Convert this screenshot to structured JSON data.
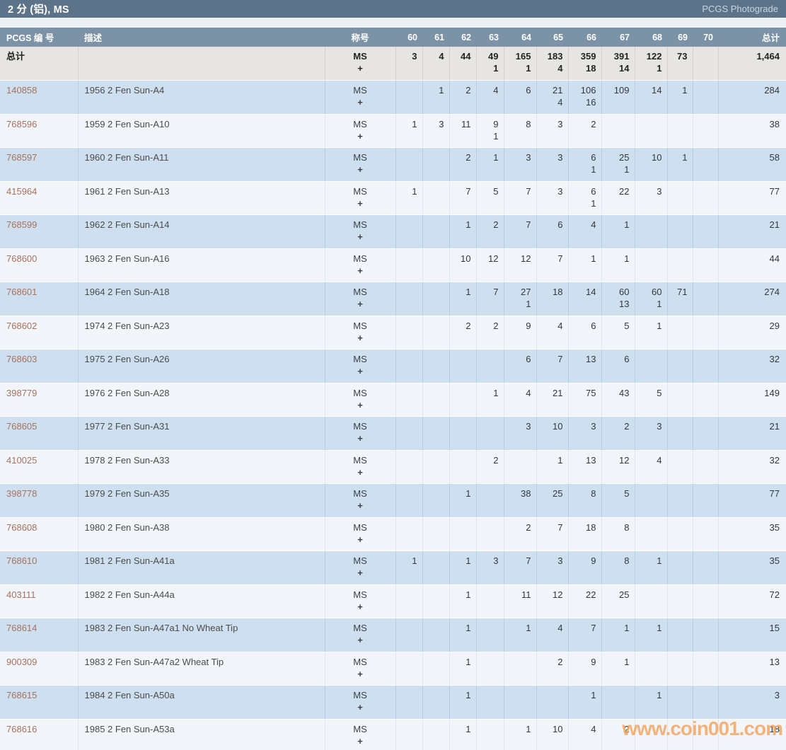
{
  "header": {
    "title": "2 分 (铝), MS",
    "right_link": "PCGS Photograde"
  },
  "watermark": "www.coin001.com",
  "colors": {
    "titlebar_bg": "#5c7389",
    "column_header_bg": "#7b92a7",
    "totals_row_bg": "#e7e5e2",
    "row_blue_bg": "#cee0ef",
    "row_light_bg": "#f2f6fa",
    "pcgs_link": "#a5725f",
    "watermark_orange": "#f3a662"
  },
  "table": {
    "columns": {
      "pcgs": "PCGS 编 号",
      "desc": "描述",
      "title": "称号",
      "grades": [
        "60",
        "61",
        "62",
        "63",
        "64",
        "65",
        "66",
        "67",
        "68",
        "69",
        "70"
      ],
      "total": "总计"
    },
    "title_lines": [
      "MS",
      "+"
    ],
    "totals_row": {
      "label": "总计",
      "grades": [
        [
          "3",
          ""
        ],
        [
          "4",
          ""
        ],
        [
          "44",
          ""
        ],
        [
          "49",
          "1"
        ],
        [
          "165",
          "1"
        ],
        [
          "183",
          "4"
        ],
        [
          "359",
          "18"
        ],
        [
          "391",
          "14"
        ],
        [
          "122",
          "1"
        ],
        [
          "73",
          ""
        ],
        [
          "",
          ""
        ]
      ],
      "total": "1,464"
    },
    "rows": [
      {
        "pcgs": "140858",
        "desc": "1956 2 Fen Sun-A4",
        "grades": [
          [
            "",
            ""
          ],
          [
            "1",
            ""
          ],
          [
            "2",
            ""
          ],
          [
            "4",
            ""
          ],
          [
            "6",
            ""
          ],
          [
            "21",
            "4"
          ],
          [
            "106",
            "16"
          ],
          [
            "109",
            ""
          ],
          [
            "14",
            ""
          ],
          [
            "1",
            ""
          ],
          [
            "",
            ""
          ]
        ],
        "total": "284"
      },
      {
        "pcgs": "768596",
        "desc": "1959 2 Fen Sun-A10",
        "grades": [
          [
            "1",
            ""
          ],
          [
            "3",
            ""
          ],
          [
            "11",
            ""
          ],
          [
            "9",
            "1"
          ],
          [
            "8",
            ""
          ],
          [
            "3",
            ""
          ],
          [
            "2",
            ""
          ],
          [
            "",
            ""
          ],
          [
            "",
            ""
          ],
          [
            "",
            ""
          ],
          [
            "",
            ""
          ]
        ],
        "total": "38"
      },
      {
        "pcgs": "768597",
        "desc": "1960 2 Fen Sun-A11",
        "grades": [
          [
            "",
            ""
          ],
          [
            "",
            ""
          ],
          [
            "2",
            ""
          ],
          [
            "1",
            ""
          ],
          [
            "3",
            ""
          ],
          [
            "3",
            ""
          ],
          [
            "6",
            "1"
          ],
          [
            "25",
            "1"
          ],
          [
            "10",
            ""
          ],
          [
            "1",
            ""
          ],
          [
            "",
            ""
          ]
        ],
        "total": "58"
      },
      {
        "pcgs": "415964",
        "desc": "1961 2 Fen Sun-A13",
        "grades": [
          [
            "1",
            ""
          ],
          [
            "",
            ""
          ],
          [
            "7",
            ""
          ],
          [
            "5",
            ""
          ],
          [
            "7",
            ""
          ],
          [
            "3",
            ""
          ],
          [
            "6",
            "1"
          ],
          [
            "22",
            ""
          ],
          [
            "3",
            ""
          ],
          [
            "",
            ""
          ],
          [
            "",
            ""
          ]
        ],
        "total": "77"
      },
      {
        "pcgs": "768599",
        "desc": "1962 2 Fen Sun-A14",
        "grades": [
          [
            "",
            ""
          ],
          [
            "",
            ""
          ],
          [
            "1",
            ""
          ],
          [
            "2",
            ""
          ],
          [
            "7",
            ""
          ],
          [
            "6",
            ""
          ],
          [
            "4",
            ""
          ],
          [
            "1",
            ""
          ],
          [
            "",
            ""
          ],
          [
            "",
            ""
          ],
          [
            "",
            ""
          ]
        ],
        "total": "21"
      },
      {
        "pcgs": "768600",
        "desc": "1963 2 Fen Sun-A16",
        "grades": [
          [
            "",
            ""
          ],
          [
            "",
            ""
          ],
          [
            "10",
            ""
          ],
          [
            "12",
            ""
          ],
          [
            "12",
            ""
          ],
          [
            "7",
            ""
          ],
          [
            "1",
            ""
          ],
          [
            "1",
            ""
          ],
          [
            "",
            ""
          ],
          [
            "",
            ""
          ],
          [
            "",
            ""
          ]
        ],
        "total": "44"
      },
      {
        "pcgs": "768601",
        "desc": "1964 2 Fen Sun-A18",
        "grades": [
          [
            "",
            ""
          ],
          [
            "",
            ""
          ],
          [
            "1",
            ""
          ],
          [
            "7",
            ""
          ],
          [
            "27",
            "1"
          ],
          [
            "18",
            ""
          ],
          [
            "14",
            ""
          ],
          [
            "60",
            "13"
          ],
          [
            "60",
            "1"
          ],
          [
            "71",
            ""
          ],
          [
            "",
            ""
          ]
        ],
        "total": "274"
      },
      {
        "pcgs": "768602",
        "desc": "1974 2 Fen Sun-A23",
        "grades": [
          [
            "",
            ""
          ],
          [
            "",
            ""
          ],
          [
            "2",
            ""
          ],
          [
            "2",
            ""
          ],
          [
            "9",
            ""
          ],
          [
            "4",
            ""
          ],
          [
            "6",
            ""
          ],
          [
            "5",
            ""
          ],
          [
            "1",
            ""
          ],
          [
            "",
            ""
          ],
          [
            "",
            ""
          ]
        ],
        "total": "29"
      },
      {
        "pcgs": "768603",
        "desc": "1975 2 Fen Sun-A26",
        "grades": [
          [
            "",
            ""
          ],
          [
            "",
            ""
          ],
          [
            "",
            ""
          ],
          [
            "",
            ""
          ],
          [
            "6",
            ""
          ],
          [
            "7",
            ""
          ],
          [
            "13",
            ""
          ],
          [
            "6",
            ""
          ],
          [
            "",
            ""
          ],
          [
            "",
            ""
          ],
          [
            "",
            ""
          ]
        ],
        "total": "32"
      },
      {
        "pcgs": "398779",
        "desc": "1976 2 Fen Sun-A28",
        "grades": [
          [
            "",
            ""
          ],
          [
            "",
            ""
          ],
          [
            "",
            ""
          ],
          [
            "1",
            ""
          ],
          [
            "4",
            ""
          ],
          [
            "21",
            ""
          ],
          [
            "75",
            ""
          ],
          [
            "43",
            ""
          ],
          [
            "5",
            ""
          ],
          [
            "",
            ""
          ],
          [
            "",
            ""
          ]
        ],
        "total": "149"
      },
      {
        "pcgs": "768605",
        "desc": "1977 2 Fen Sun-A31",
        "grades": [
          [
            "",
            ""
          ],
          [
            "",
            ""
          ],
          [
            "",
            ""
          ],
          [
            "",
            ""
          ],
          [
            "3",
            ""
          ],
          [
            "10",
            ""
          ],
          [
            "3",
            ""
          ],
          [
            "2",
            ""
          ],
          [
            "3",
            ""
          ],
          [
            "",
            ""
          ],
          [
            "",
            ""
          ]
        ],
        "total": "21"
      },
      {
        "pcgs": "410025",
        "desc": "1978 2 Fen Sun-A33",
        "grades": [
          [
            "",
            ""
          ],
          [
            "",
            ""
          ],
          [
            "",
            ""
          ],
          [
            "2",
            ""
          ],
          [
            "",
            ""
          ],
          [
            "1",
            ""
          ],
          [
            "13",
            ""
          ],
          [
            "12",
            ""
          ],
          [
            "4",
            ""
          ],
          [
            "",
            ""
          ],
          [
            "",
            ""
          ]
        ],
        "total": "32"
      },
      {
        "pcgs": "398778",
        "desc": "1979 2 Fen Sun-A35",
        "grades": [
          [
            "",
            ""
          ],
          [
            "",
            ""
          ],
          [
            "1",
            ""
          ],
          [
            "",
            ""
          ],
          [
            "38",
            ""
          ],
          [
            "25",
            ""
          ],
          [
            "8",
            ""
          ],
          [
            "5",
            ""
          ],
          [
            "",
            ""
          ],
          [
            "",
            ""
          ],
          [
            "",
            ""
          ]
        ],
        "total": "77"
      },
      {
        "pcgs": "768608",
        "desc": "1980 2 Fen Sun-A38",
        "grades": [
          [
            "",
            ""
          ],
          [
            "",
            ""
          ],
          [
            "",
            ""
          ],
          [
            "",
            ""
          ],
          [
            "2",
            ""
          ],
          [
            "7",
            ""
          ],
          [
            "18",
            ""
          ],
          [
            "8",
            ""
          ],
          [
            "",
            ""
          ],
          [
            "",
            ""
          ],
          [
            "",
            ""
          ]
        ],
        "total": "35"
      },
      {
        "pcgs": "768610",
        "desc": "1981 2 Fen Sun-A41a",
        "grades": [
          [
            "1",
            ""
          ],
          [
            "",
            ""
          ],
          [
            "1",
            ""
          ],
          [
            "3",
            ""
          ],
          [
            "7",
            ""
          ],
          [
            "3",
            ""
          ],
          [
            "9",
            ""
          ],
          [
            "8",
            ""
          ],
          [
            "1",
            ""
          ],
          [
            "",
            ""
          ],
          [
            "",
            ""
          ]
        ],
        "total": "35"
      },
      {
        "pcgs": "403111",
        "desc": "1982 2 Fen Sun-A44a",
        "grades": [
          [
            "",
            ""
          ],
          [
            "",
            ""
          ],
          [
            "1",
            ""
          ],
          [
            "",
            ""
          ],
          [
            "11",
            ""
          ],
          [
            "12",
            ""
          ],
          [
            "22",
            ""
          ],
          [
            "25",
            ""
          ],
          [
            "",
            ""
          ],
          [
            "",
            ""
          ],
          [
            "",
            ""
          ]
        ],
        "total": "72"
      },
      {
        "pcgs": "768614",
        "desc": "1983 2 Fen Sun-A47a1 No Wheat Tip",
        "grades": [
          [
            "",
            ""
          ],
          [
            "",
            ""
          ],
          [
            "1",
            ""
          ],
          [
            "",
            ""
          ],
          [
            "1",
            ""
          ],
          [
            "4",
            ""
          ],
          [
            "7",
            ""
          ],
          [
            "1",
            ""
          ],
          [
            "1",
            ""
          ],
          [
            "",
            ""
          ],
          [
            "",
            ""
          ]
        ],
        "total": "15"
      },
      {
        "pcgs": "900309",
        "desc": "1983 2 Fen Sun-A47a2 Wheat Tip",
        "grades": [
          [
            "",
            ""
          ],
          [
            "",
            ""
          ],
          [
            "1",
            ""
          ],
          [
            "",
            ""
          ],
          [
            "",
            ""
          ],
          [
            "2",
            ""
          ],
          [
            "9",
            ""
          ],
          [
            "1",
            ""
          ],
          [
            "",
            ""
          ],
          [
            "",
            ""
          ],
          [
            "",
            ""
          ]
        ],
        "total": "13"
      },
      {
        "pcgs": "768615",
        "desc": "1984 2 Fen Sun-A50a",
        "grades": [
          [
            "",
            ""
          ],
          [
            "",
            ""
          ],
          [
            "1",
            ""
          ],
          [
            "",
            ""
          ],
          [
            "",
            ""
          ],
          [
            "",
            ""
          ],
          [
            "1",
            ""
          ],
          [
            "",
            ""
          ],
          [
            "1",
            ""
          ],
          [
            "",
            ""
          ],
          [
            "",
            ""
          ]
        ],
        "total": "3"
      },
      {
        "pcgs": "768616",
        "desc": "1985 2 Fen Sun-A53a",
        "grades": [
          [
            "",
            ""
          ],
          [
            "",
            ""
          ],
          [
            "1",
            ""
          ],
          [
            "",
            ""
          ],
          [
            "1",
            ""
          ],
          [
            "10",
            ""
          ],
          [
            "4",
            ""
          ],
          [
            "2",
            ""
          ],
          [
            "",
            ""
          ],
          [
            "",
            ""
          ],
          [
            "",
            ""
          ]
        ],
        "total": "18"
      }
    ]
  }
}
